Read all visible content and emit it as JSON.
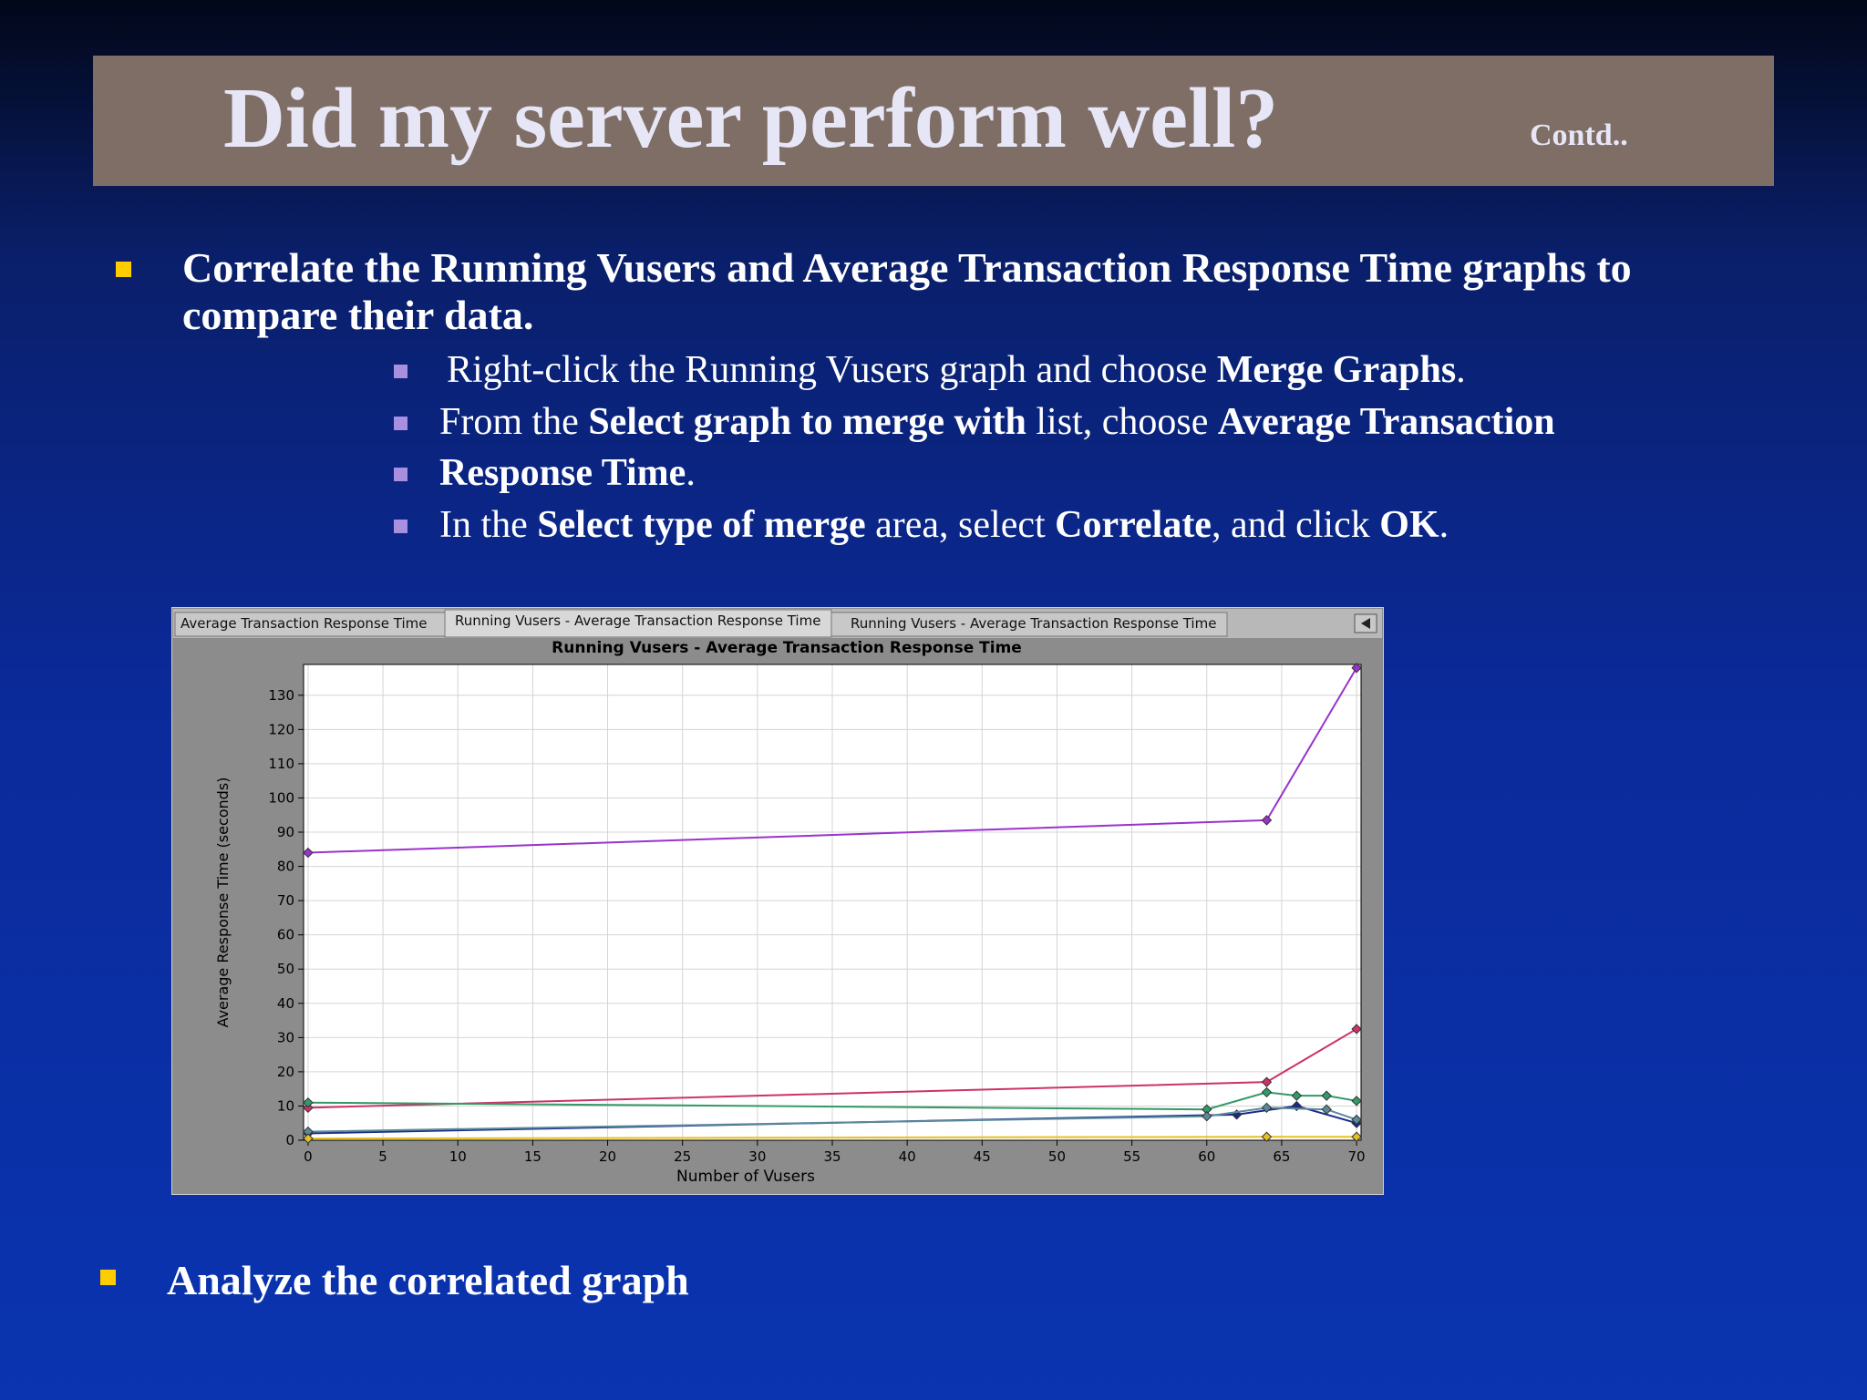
{
  "slide": {
    "title": "Did my server perform well?",
    "contd": "Contd..",
    "bullet1": [
      "Correlate the Running Vusers and Average Transaction Response Time graphs to compare their data."
    ],
    "steps": [
      [
        "Right-click the Running Vusers graph and choose ",
        "Merge Graphs",
        "."
      ],
      [
        "From the ",
        "Select graph to merge with",
        " list, choose ",
        "Average Transaction"
      ],
      [
        "Response Time",
        "."
      ],
      [
        "In the ",
        "Select type of merge",
        " area, select ",
        "Correlate",
        ", and click ",
        "OK",
        "."
      ]
    ],
    "bullet2": "Analyze the correlated graph",
    "tabs": [
      "Average Transaction Response Time",
      "Running Vusers - Average Transaction Response Time",
      "Running Vusers - Average Transaction Response Time"
    ]
  },
  "chart_data": {
    "type": "line",
    "title": "Running Vusers - Average Transaction Response Time",
    "x_label": "Number of Vusers",
    "y_label": "Average Response Time (seconds)",
    "xlim": [
      -0.3,
      70.3
    ],
    "xticks": [
      0,
      5,
      10,
      15,
      20,
      25,
      30,
      35,
      40,
      45,
      50,
      55,
      60,
      65,
      70
    ],
    "ylim": [
      0,
      139
    ],
    "yticks": [
      0,
      10,
      20,
      30,
      40,
      50,
      60,
      70,
      80,
      90,
      100,
      110,
      120,
      130
    ],
    "grid": true,
    "series": [
      {
        "color": "#9933cc",
        "x": [
          0,
          64,
          70
        ],
        "values": [
          84,
          93.5,
          138
        ]
      },
      {
        "color": "#cc3366",
        "x": [
          0,
          64,
          70
        ],
        "values": [
          9.5,
          17,
          32.5
        ]
      },
      {
        "color": "#339966",
        "x": [
          0,
          60,
          64,
          66,
          68,
          70
        ],
        "values": [
          11,
          9,
          14,
          13,
          13,
          11.5
        ]
      },
      {
        "color": "#1a2a8c",
        "x": [
          0,
          62,
          66,
          70
        ],
        "values": [
          2,
          7.5,
          10,
          5
        ]
      },
      {
        "color": "#5a8a9a",
        "x": [
          0,
          60,
          64,
          68,
          70
        ],
        "values": [
          2.5,
          7,
          9.5,
          9,
          6
        ]
      },
      {
        "color": "#e6c020",
        "x": [
          0,
          64,
          70
        ],
        "values": [
          0.5,
          1,
          1
        ]
      }
    ]
  }
}
